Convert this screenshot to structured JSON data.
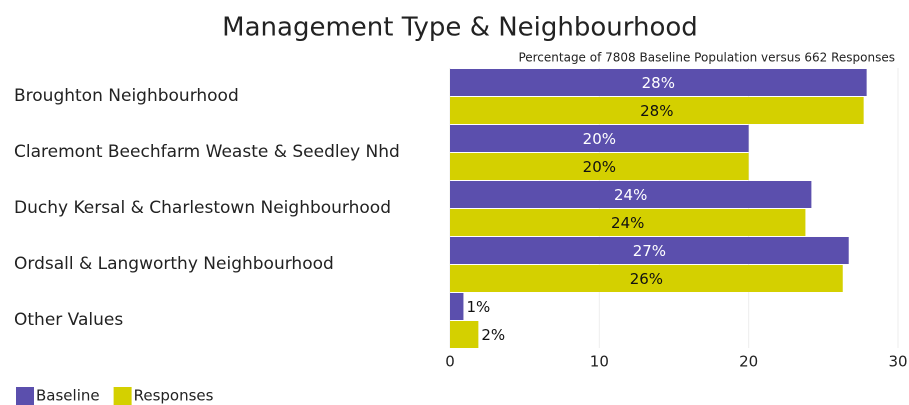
{
  "chart_data": {
    "type": "bar",
    "orientation": "horizontal",
    "title": "Management Type & Neighbourhood",
    "subtitle": "Percentage of 7808 Baseline Population versus 662 Responses",
    "categories": [
      "Broughton Neighbourhood",
      "Claremont Beechfarm Weaste & Seedley Nhd",
      "Duchy Kersal & Charlestown Neighbourhood",
      "Ordsall & Langworthy Neighbourhood",
      "Other Values"
    ],
    "series": [
      {
        "name": "Baseline",
        "color": "#5b4fad",
        "values": [
          27.9,
          20.0,
          24.2,
          26.7,
          0.9
        ],
        "value_labels": [
          "28%",
          "20%",
          "24%",
          "27%",
          "1%"
        ]
      },
      {
        "name": "Responses",
        "color": "#d4d000",
        "values": [
          27.7,
          20.0,
          23.8,
          26.3,
          1.9
        ],
        "value_labels": [
          "28%",
          "20%",
          "24%",
          "26%",
          "2%"
        ]
      }
    ],
    "xlim": [
      0,
      30
    ],
    "xticks": [
      0,
      10,
      20,
      30
    ],
    "grid": true,
    "legend": "bottom-left"
  }
}
